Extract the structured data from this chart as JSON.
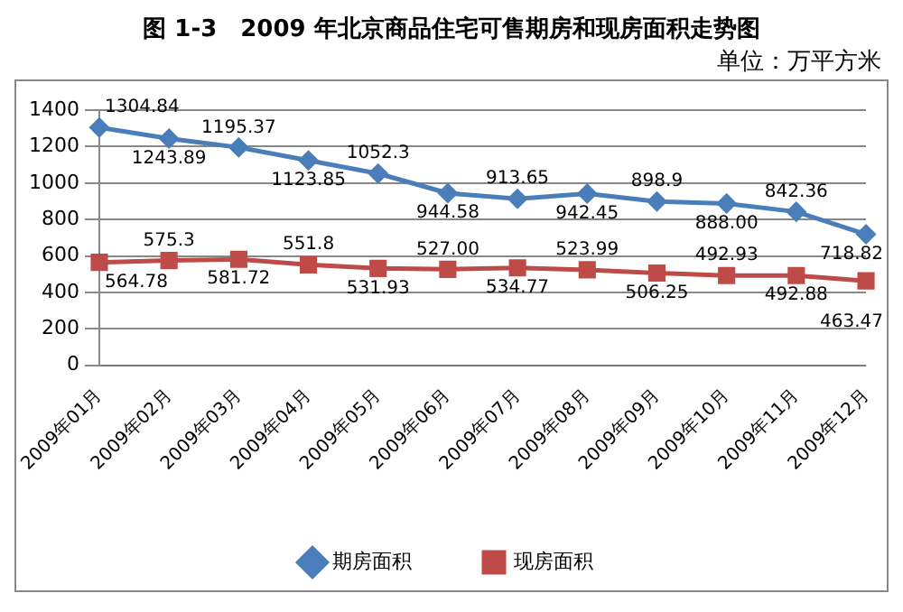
{
  "chart_data": {
    "type": "line",
    "title": "图 1-3　2009 年北京商品住宅可售期房和现房面积走势图",
    "subtitle": "单位：万平方米",
    "categories": [
      "2009年01月",
      "2009年02月",
      "2009年03月",
      "2009年04月",
      "2009年05月",
      "2009年06月",
      "2009年07月",
      "2009年08月",
      "2009年09月",
      "2009年10月",
      "2009年11月",
      "2009年12月"
    ],
    "series": [
      {
        "name": "期房面积",
        "color": "#4a7ebb",
        "marker": "diamond",
        "values": [
          1304.84,
          1243.89,
          1195.37,
          1123.85,
          1052.3,
          944.58,
          913.65,
          942.45,
          898.9,
          888.0,
          842.36,
          718.82
        ],
        "value_labels": [
          "1304.84",
          "1243.89",
          "1195.37",
          "1123.85",
          "1052.3",
          "944.58",
          "913.65",
          "942.45",
          "898.9",
          "888.00",
          "842.36",
          "718.82"
        ]
      },
      {
        "name": "现房面积",
        "color": "#be4b48",
        "marker": "square",
        "values": [
          564.78,
          575.3,
          581.72,
          551.8,
          531.93,
          527.0,
          534.77,
          523.99,
          506.25,
          492.93,
          492.88,
          463.47
        ],
        "value_labels": [
          "564.78",
          "575.3",
          "581.72",
          "551.8",
          "531.93",
          "527.00",
          "534.77",
          "523.99",
          "506.25",
          "492.93",
          "492.88",
          "463.47"
        ]
      }
    ],
    "ylim": [
      0,
      1400
    ],
    "yticks": [
      0,
      200,
      400,
      600,
      800,
      1000,
      1200,
      1400
    ],
    "grid": "y",
    "legend": "bottom",
    "line_style": "solid"
  }
}
